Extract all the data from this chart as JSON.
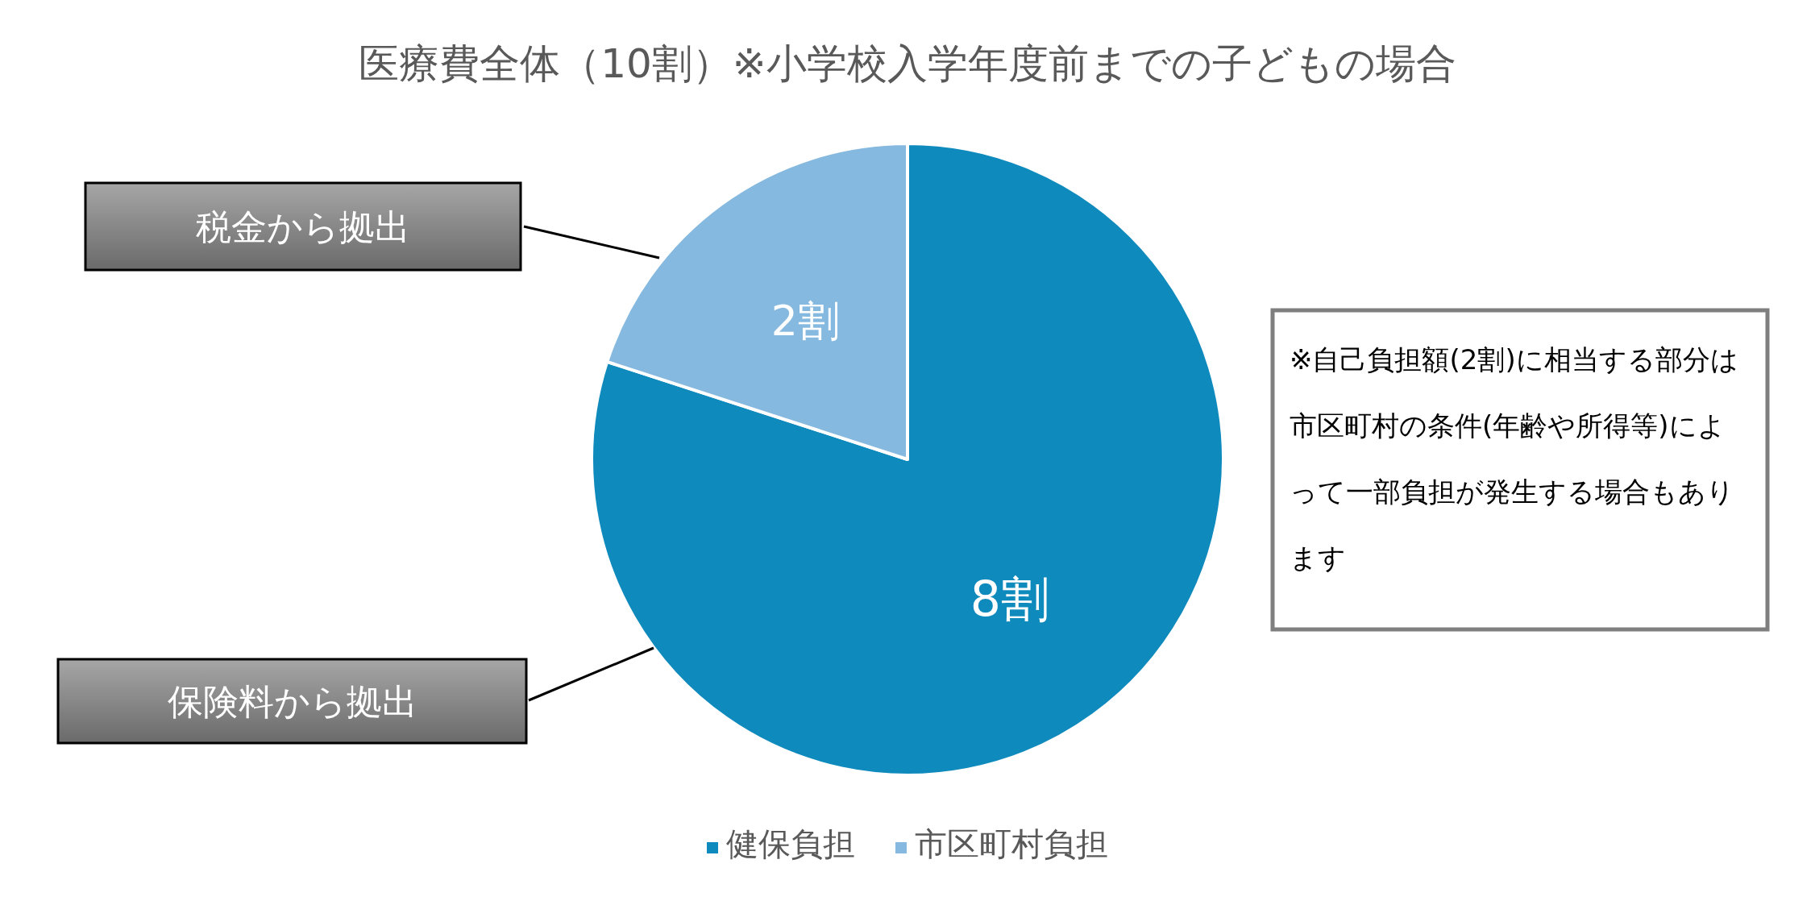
{
  "chart_data": {
    "type": "pie",
    "title": "医療費全体（10割）※小学校入学年度前までの子どもの場合",
    "categories": [
      "健保負担",
      "市区町村負担"
    ],
    "values": [
      8,
      2
    ],
    "colors": [
      "#0f8abd",
      "#86b9df"
    ],
    "value_labels": [
      "8割",
      "2割"
    ],
    "legend": "bottom",
    "annotations": [
      "税金から拠出",
      "保険料から拠出",
      "※自己負担額(2割)に相当する部分は市区町村の条件(年齢や所得等)によって一部負担が発生する場合もあります"
    ]
  }
}
